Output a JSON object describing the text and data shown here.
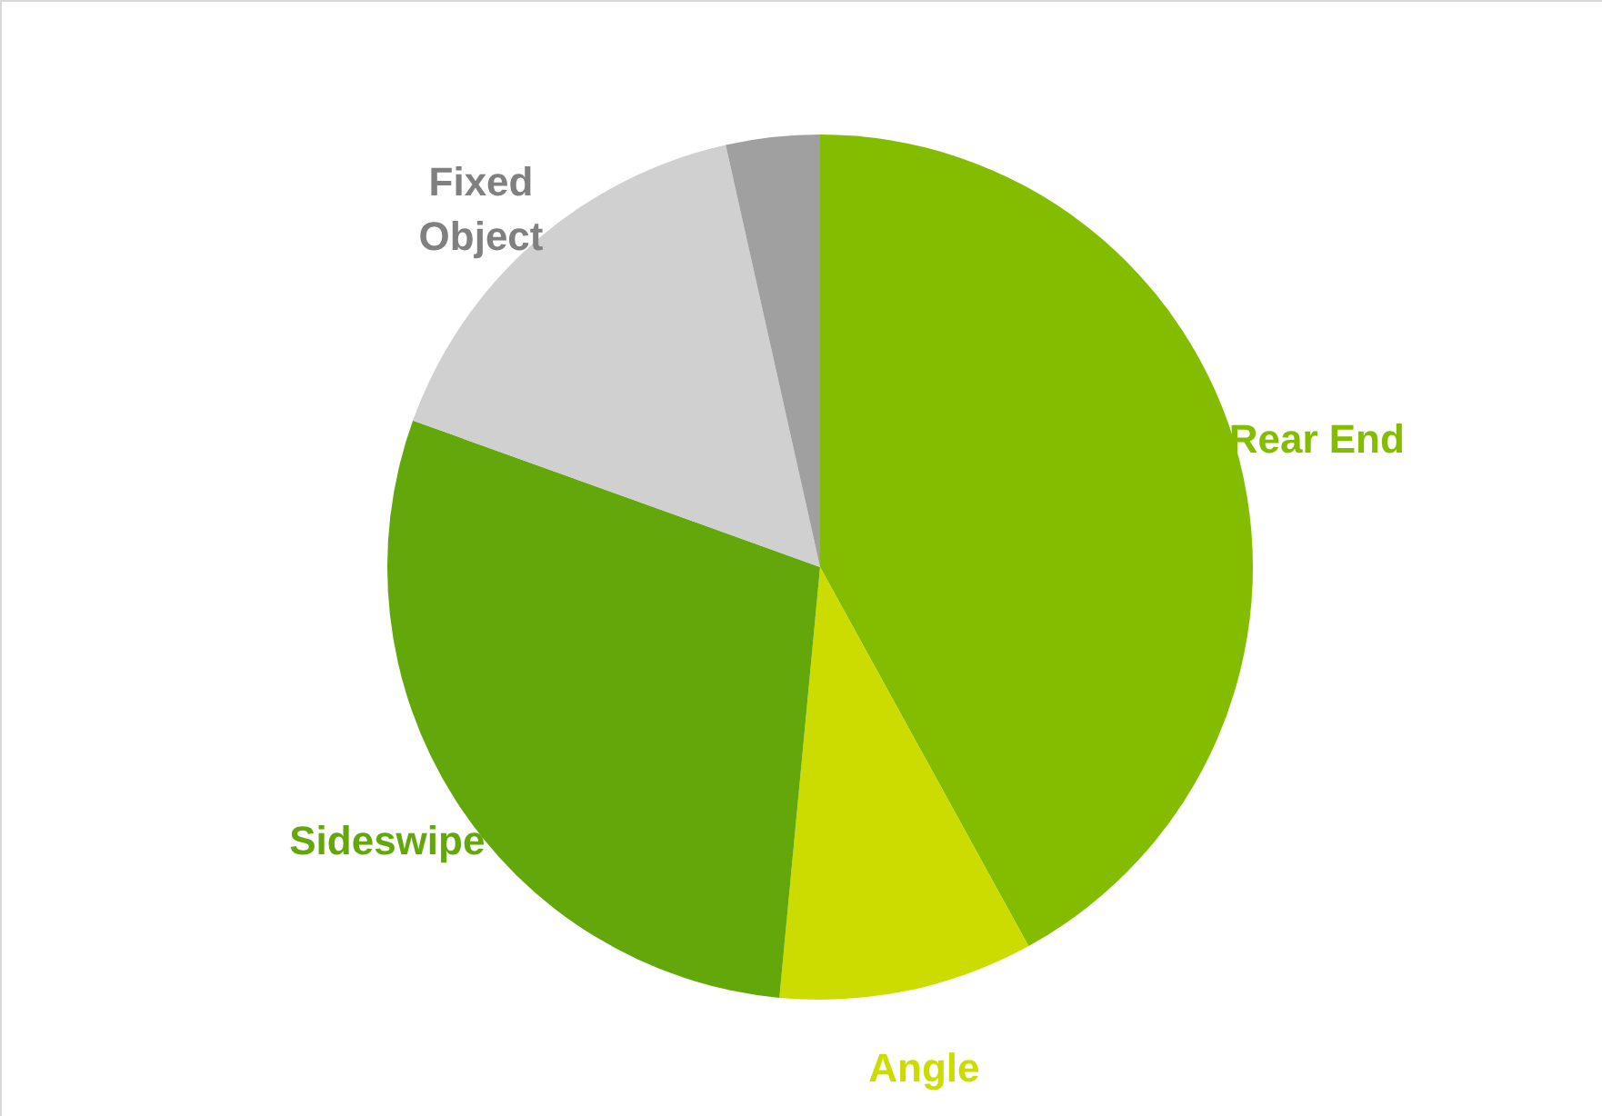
{
  "chart_data": {
    "type": "pie",
    "categories": [
      "Rear End",
      "Angle",
      "Sideswipe",
      "Fixed Object",
      null
    ],
    "values": [
      42,
      9.5,
      29,
      16,
      3.5
    ],
    "colors": [
      "#84bd00",
      "#cddc00",
      "#64a70b",
      "#d0d0d0",
      "#a0a0a0"
    ]
  }
}
